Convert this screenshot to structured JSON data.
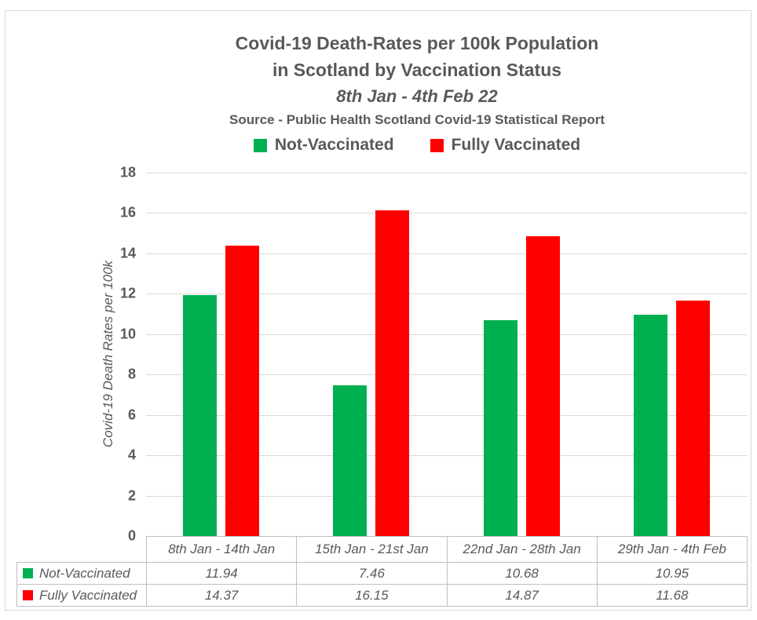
{
  "header": {
    "title_line1": "Covid-19 Death-Rates per 100k Population",
    "title_line2": "in Scotland by Vaccination Status",
    "title_line3": "8th Jan - 4th Feb 22",
    "source_line": "Source - Public Health Scotland Covid-19 Statistical Report"
  },
  "chart_data": {
    "type": "bar",
    "title": "Covid-19 Death-Rates per 100k Population in Scotland by Vaccination Status 8th Jan - 4th Feb 22",
    "subtitle": "Source - Public Health Scotland Covid-19 Statistical Report",
    "categories": [
      "8th Jan - 14th Jan",
      "15th Jan - 21st Jan",
      "22nd Jan - 28th Jan",
      "29th Jan - 4th Feb"
    ],
    "series": [
      {
        "name": "Not-Vaccinated",
        "color": "#00B050",
        "values": [
          11.94,
          7.46,
          10.68,
          10.95
        ]
      },
      {
        "name": "Fully Vaccinated",
        "color": "#FF0000",
        "values": [
          14.37,
          16.15,
          14.87,
          11.68
        ]
      }
    ],
    "xlabel": "",
    "ylabel": "Covid-19 Death Rates per 100k",
    "ylim": [
      0,
      18
    ],
    "ytick_step": 2,
    "grid": true,
    "legend_position": "top",
    "data_table_shown": true
  },
  "colors": {
    "text": "#595959",
    "gridline": "#D9D9D9",
    "table_border": "#BFBFBF",
    "frame_border": "#D9D9D9",
    "background": "#FFFFFF"
  }
}
